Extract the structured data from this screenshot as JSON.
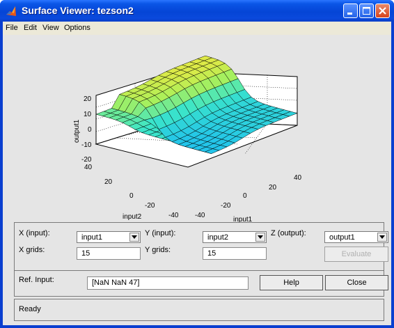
{
  "window": {
    "title": "Surface Viewer: tezson2"
  },
  "menu": [
    "File",
    "Edit",
    "View",
    "Options"
  ],
  "chart": {
    "z_label": "output1",
    "x_label": "input1",
    "y_label": "input2",
    "z_ticks": [
      "20",
      "10",
      "0",
      "-10",
      "-20"
    ],
    "y_ticks": [
      "40",
      "20",
      "0",
      "-20",
      "-40"
    ],
    "x_ticks": [
      "-40",
      "-20",
      "0",
      "20",
      "40"
    ]
  },
  "chart_data": {
    "type": "surface",
    "xlabel": "input1",
    "ylabel": "input2",
    "zlabel": "output1",
    "xlim": [
      -40,
      40
    ],
    "ylim": [
      -40,
      40
    ],
    "zlim": [
      -25,
      25
    ],
    "grid": true,
    "grid_points": 15
  },
  "controls": {
    "x_input_label": "X (input):",
    "x_input_value": "input1",
    "y_input_label": "Y (input):",
    "y_input_value": "input2",
    "z_output_label": "Z (output):",
    "z_output_value": "output1",
    "x_grids_label": "X grids:",
    "x_grids_value": "15",
    "y_grids_label": "Y grids:",
    "y_grids_value": "15",
    "evaluate_label": "Evaluate",
    "ref_input_label": "Ref. Input:",
    "ref_input_value": "[NaN NaN 47]",
    "help_label": "Help",
    "close_label": "Close"
  },
  "status": {
    "text": "Ready"
  }
}
